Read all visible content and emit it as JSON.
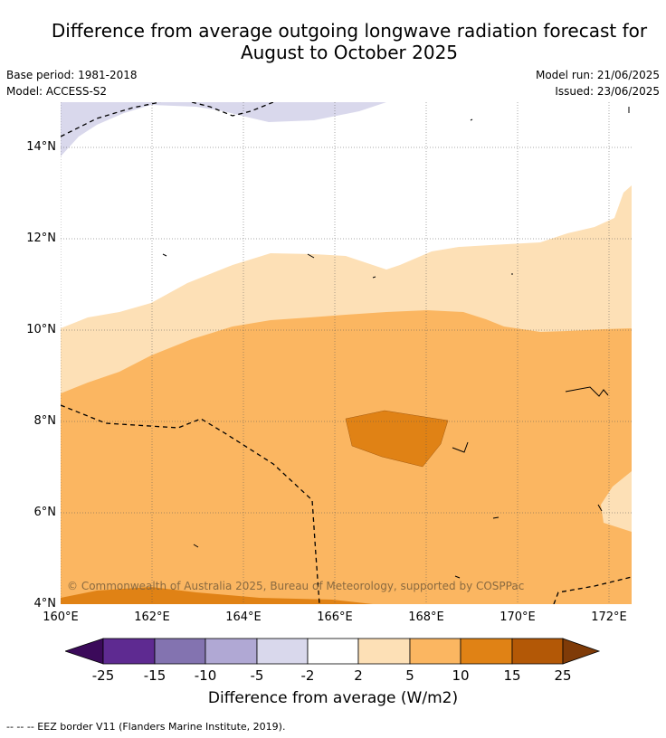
{
  "title_line1": "Difference from average outgoing longwave radiation forecast for",
  "title_line2": "August to October 2025",
  "base_period": "Base period: 1981-2018",
  "model": "Model: ACCESS-S2",
  "model_run": "Model run: 21/06/2025",
  "issued": "Issued: 23/06/2025",
  "copyright": "© Commonwealth of Australia 2025, Bureau of Meteorology, supported by COSPPac",
  "x_ticks": [
    "160°E",
    "162°E",
    "164°E",
    "166°E",
    "168°E",
    "170°E",
    "172°E"
  ],
  "y_ticks": [
    "14°N",
    "12°N",
    "10°N",
    "8°N",
    "6°N",
    "4°N"
  ],
  "colorbar": {
    "labels": [
      "-25",
      "-15",
      "-10",
      "-5",
      "-2",
      "2",
      "5",
      "10",
      "15",
      "25"
    ],
    "colors": [
      "#3b0a5a",
      "#5e2a91",
      "#8373b0",
      "#b0a8d4",
      "#d9d8ec",
      "#ffffff",
      "#fde0b6",
      "#fbb661",
      "#e08215",
      "#b35806",
      "#7f3b08"
    ],
    "title": "Difference from average (W/m2)"
  },
  "legend_footer": "--  --  -- EEZ border V11 (Flanders Marine Institute, 2019).",
  "map_colors": {
    "band_2_5": "#fde0b6",
    "band_5_10": "#fbb661",
    "band_10_15": "#e08215",
    "band_neg_2_5": "#d9d8ec"
  }
}
